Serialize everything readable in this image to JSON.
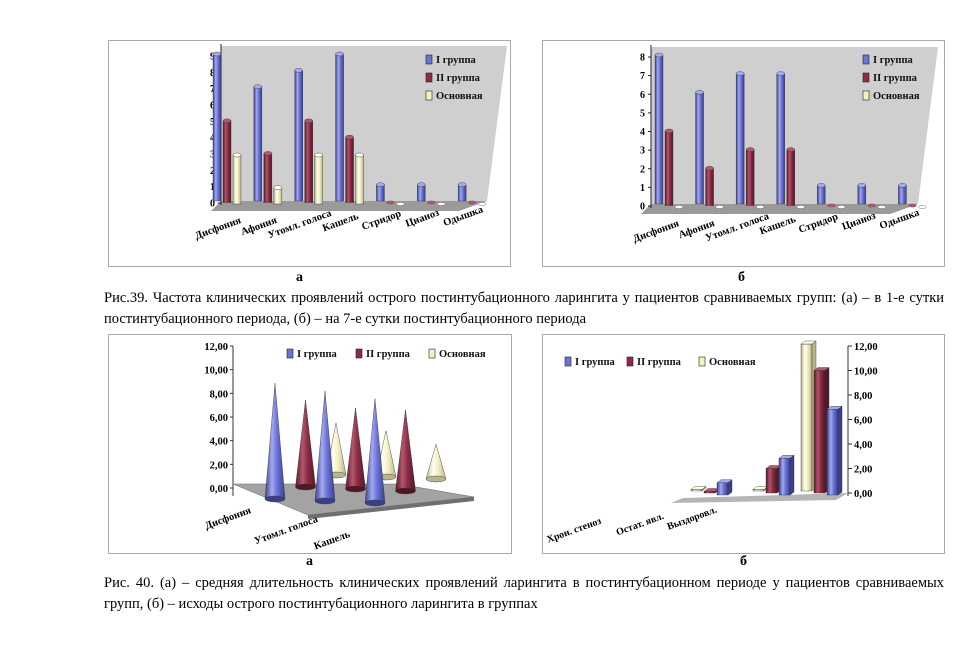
{
  "colors": {
    "g1": "#6b73d9",
    "g2": "#8c2d45",
    "g3": "#f3f0c2"
  },
  "figure39": {
    "caption": "Рис.39. Частота клинических проявлений острого постинтубационного ларингита у пациентов сравниваемых групп: (а) – в 1-е сутки постинтубационного периода, (б) – на 7-е сутки постинтубационного периода",
    "letter_a": "а",
    "letter_b": "б"
  },
  "figure40": {
    "caption": "Рис. 40. (а) – средняя длительность клинических проявлений ларингита в постинтубационном периоде у пациентов сравниваемых групп, (б) – исходы острого постинтубационного ларингита в группах",
    "letter_a": "а",
    "letter_b": "б"
  },
  "chart_data": [
    {
      "type": "bar",
      "categories": [
        "Дисфония",
        "Афония",
        "Утомл. голоса",
        "Кашель",
        "Стридор",
        "Цианоз",
        "Одышка"
      ],
      "series": [
        {
          "name": "I группа",
          "values": [
            9,
            7,
            8,
            9,
            1,
            1,
            1
          ]
        },
        {
          "name": "II группа",
          "values": [
            5,
            3,
            5,
            4,
            0,
            0,
            0
          ]
        },
        {
          "name": "Основная",
          "values": [
            3,
            1,
            3,
            3,
            0,
            0,
            0
          ]
        }
      ],
      "ylim": [
        0,
        9
      ],
      "yticks": [
        "0",
        "1",
        "2",
        "3",
        "4",
        "5",
        "6",
        "7",
        "8",
        "9"
      ],
      "legend": "top-right"
    },
    {
      "type": "bar",
      "categories": [
        "Дисфония",
        "Афония",
        "Утомл. голоса",
        "Кашель",
        "Стридор",
        "Цианоз",
        "Одышка"
      ],
      "series": [
        {
          "name": "I группа",
          "values": [
            8,
            6,
            7,
            7,
            1,
            1,
            1
          ]
        },
        {
          "name": "II группа",
          "values": [
            4,
            2,
            3,
            3,
            0,
            0,
            0
          ]
        },
        {
          "name": "Основная",
          "values": [
            0,
            0,
            0,
            0,
            0,
            0,
            0
          ]
        }
      ],
      "ylim": [
        0,
        8
      ],
      "yticks": [
        "0",
        "1",
        "2",
        "3",
        "4",
        "5",
        "6",
        "7",
        "8"
      ],
      "legend": "top-right"
    },
    {
      "type": "bar",
      "style": "3d-cone",
      "categories": [
        "Дисфония",
        "Утомл. голоса",
        "Кашель"
      ],
      "series": [
        {
          "name": "I группа",
          "values": [
            10,
            9.5,
            9
          ]
        },
        {
          "name": "II группа",
          "values": [
            7.5,
            7,
            7
          ]
        },
        {
          "name": "Основная",
          "values": [
            4.5,
            4,
            3
          ]
        }
      ],
      "ylim": [
        0,
        12
      ],
      "yticks": [
        "0,00",
        "2,00",
        "4,00",
        "6,00",
        "8,00",
        "10,00",
        "12,00"
      ],
      "legend": "top"
    },
    {
      "type": "bar",
      "style": "3d-column",
      "categories": [
        "Хрон. стеноз",
        "Остат. явл.",
        "Выздоровл."
      ],
      "series": [
        {
          "name": "I группа",
          "values": [
            1,
            3,
            7
          ]
        },
        {
          "name": "II группа",
          "values": [
            0,
            2,
            10
          ]
        },
        {
          "name": "Основная",
          "values": [
            0,
            0,
            12
          ]
        }
      ],
      "ylim": [
        0,
        12
      ],
      "yticks": [
        "0,00",
        "2,00",
        "4,00",
        "6,00",
        "8,00",
        "10,00",
        "12,00"
      ],
      "legend": "top-left"
    }
  ]
}
